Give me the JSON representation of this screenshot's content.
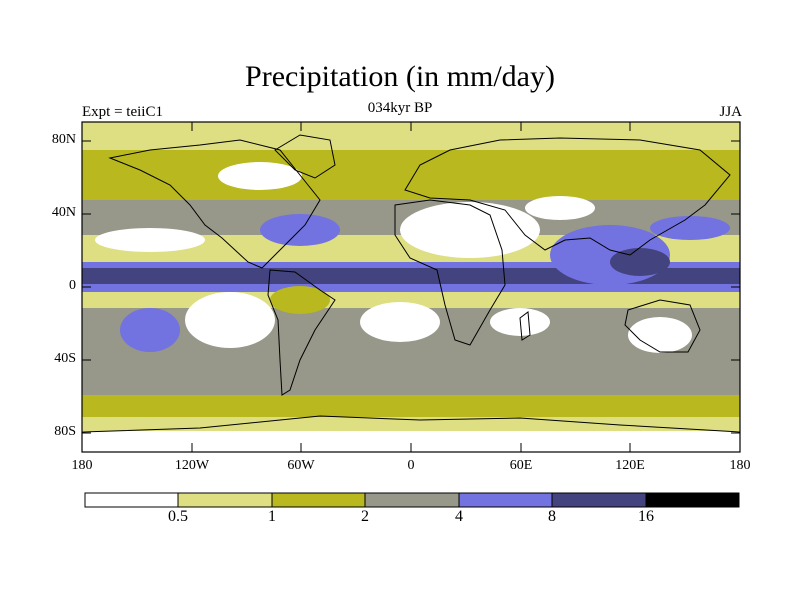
{
  "title": "Precipitation (in mm/day)",
  "subtitle": "034kyr BP",
  "left_label": "Expt = teiiC1",
  "right_label": "JJA",
  "y_axis_labels": [
    "80N",
    "40N",
    "0",
    "40S",
    "80S"
  ],
  "x_axis_labels": [
    "180",
    "120W",
    "60W",
    "0",
    "60E",
    "120E",
    "180"
  ],
  "colorbar": {
    "labels": [
      "0.5",
      "1",
      "2",
      "4",
      "8",
      "16"
    ],
    "colors": [
      "#ffffff",
      "#dede82",
      "#b9b81f",
      "#97978a",
      "#7272e0",
      "#43437f",
      "#000000"
    ]
  },
  "colors": {
    "c0": "#ffffff",
    "c1": "#dede82",
    "c2": "#b9b81f",
    "c3": "#97978a",
    "c4": "#7272e0",
    "c5": "#43437f",
    "c6": "#000000"
  }
}
